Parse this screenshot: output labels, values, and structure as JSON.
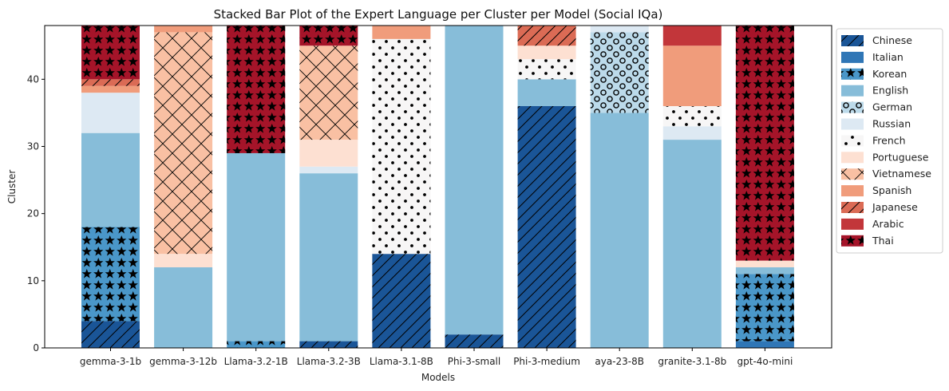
{
  "chart_data": {
    "type": "bar",
    "stacked": true,
    "title": "Stacked Bar Plot of the Expert Language per Cluster per Model (Social IQa)",
    "xlabel": "Models",
    "ylabel": "Cluster",
    "ylim": [
      0,
      48
    ],
    "yticks": [
      0,
      10,
      20,
      30,
      40
    ],
    "legend_position": "outside-right",
    "categories": [
      "gemma-3-1b",
      "gemma-3-12b",
      "Llama-3.2-1B",
      "Llama-3.2-3B",
      "Llama-3.1-8B",
      "Phi-3-small",
      "Phi-3-medium",
      "aya-23-8B",
      "granite-3.1-8b",
      "gpt-4o-mini"
    ],
    "series": [
      {
        "name": "Chinese",
        "color": "#1a5597",
        "hatch": "diag",
        "values": [
          4,
          0,
          0,
          1,
          14,
          2,
          36,
          0,
          0,
          0
        ]
      },
      {
        "name": "Italian",
        "color": "#2f76b6",
        "hatch": "none",
        "values": [
          0,
          0,
          0,
          0,
          0,
          0,
          0,
          0,
          0,
          1
        ]
      },
      {
        "name": "Korean",
        "color": "#4a97c9",
        "hatch": "star",
        "values": [
          14,
          0,
          1,
          0,
          0,
          0,
          0,
          0,
          0,
          10
        ]
      },
      {
        "name": "English",
        "color": "#87bdd9",
        "hatch": "none",
        "values": [
          14,
          12,
          28,
          25,
          0,
          46,
          4,
          35,
          31,
          1
        ]
      },
      {
        "name": "German",
        "color": "#bcdaea",
        "hatch": "ring",
        "values": [
          0,
          0,
          0,
          0,
          0,
          0,
          0,
          12,
          0,
          0
        ]
      },
      {
        "name": "Russian",
        "color": "#dde9f3",
        "hatch": "none",
        "values": [
          6,
          0,
          0,
          1,
          0,
          0,
          0,
          1,
          2,
          0
        ]
      },
      {
        "name": "French",
        "color": "#f7f6f6",
        "hatch": "dot",
        "values": [
          0,
          0,
          0,
          0,
          32,
          0,
          3,
          0,
          3,
          0
        ]
      },
      {
        "name": "Portuguese",
        "color": "#fde0d2",
        "hatch": "none",
        "values": [
          0,
          2,
          0,
          4,
          0,
          0,
          2,
          0,
          0,
          1
        ]
      },
      {
        "name": "Vietnamese",
        "color": "#f9c0a3",
        "hatch": "cross",
        "values": [
          0,
          33,
          0,
          14,
          0,
          0,
          0,
          0,
          0,
          0
        ]
      },
      {
        "name": "Spanish",
        "color": "#f09c7b",
        "hatch": "none",
        "values": [
          1,
          1,
          0,
          0,
          2,
          0,
          0,
          0,
          9,
          0
        ]
      },
      {
        "name": "Japanese",
        "color": "#db6b55",
        "hatch": "diag",
        "values": [
          1,
          0,
          0,
          0,
          0,
          0,
          3,
          0,
          0,
          0
        ]
      },
      {
        "name": "Arabic",
        "color": "#c2363a",
        "hatch": "none",
        "values": [
          0,
          0,
          0,
          0,
          0,
          0,
          0,
          0,
          3,
          0
        ]
      },
      {
        "name": "Thai",
        "color": "#a51429",
        "hatch": "star",
        "values": [
          8,
          0,
          19,
          3,
          0,
          0,
          0,
          0,
          0,
          35
        ]
      }
    ]
  }
}
